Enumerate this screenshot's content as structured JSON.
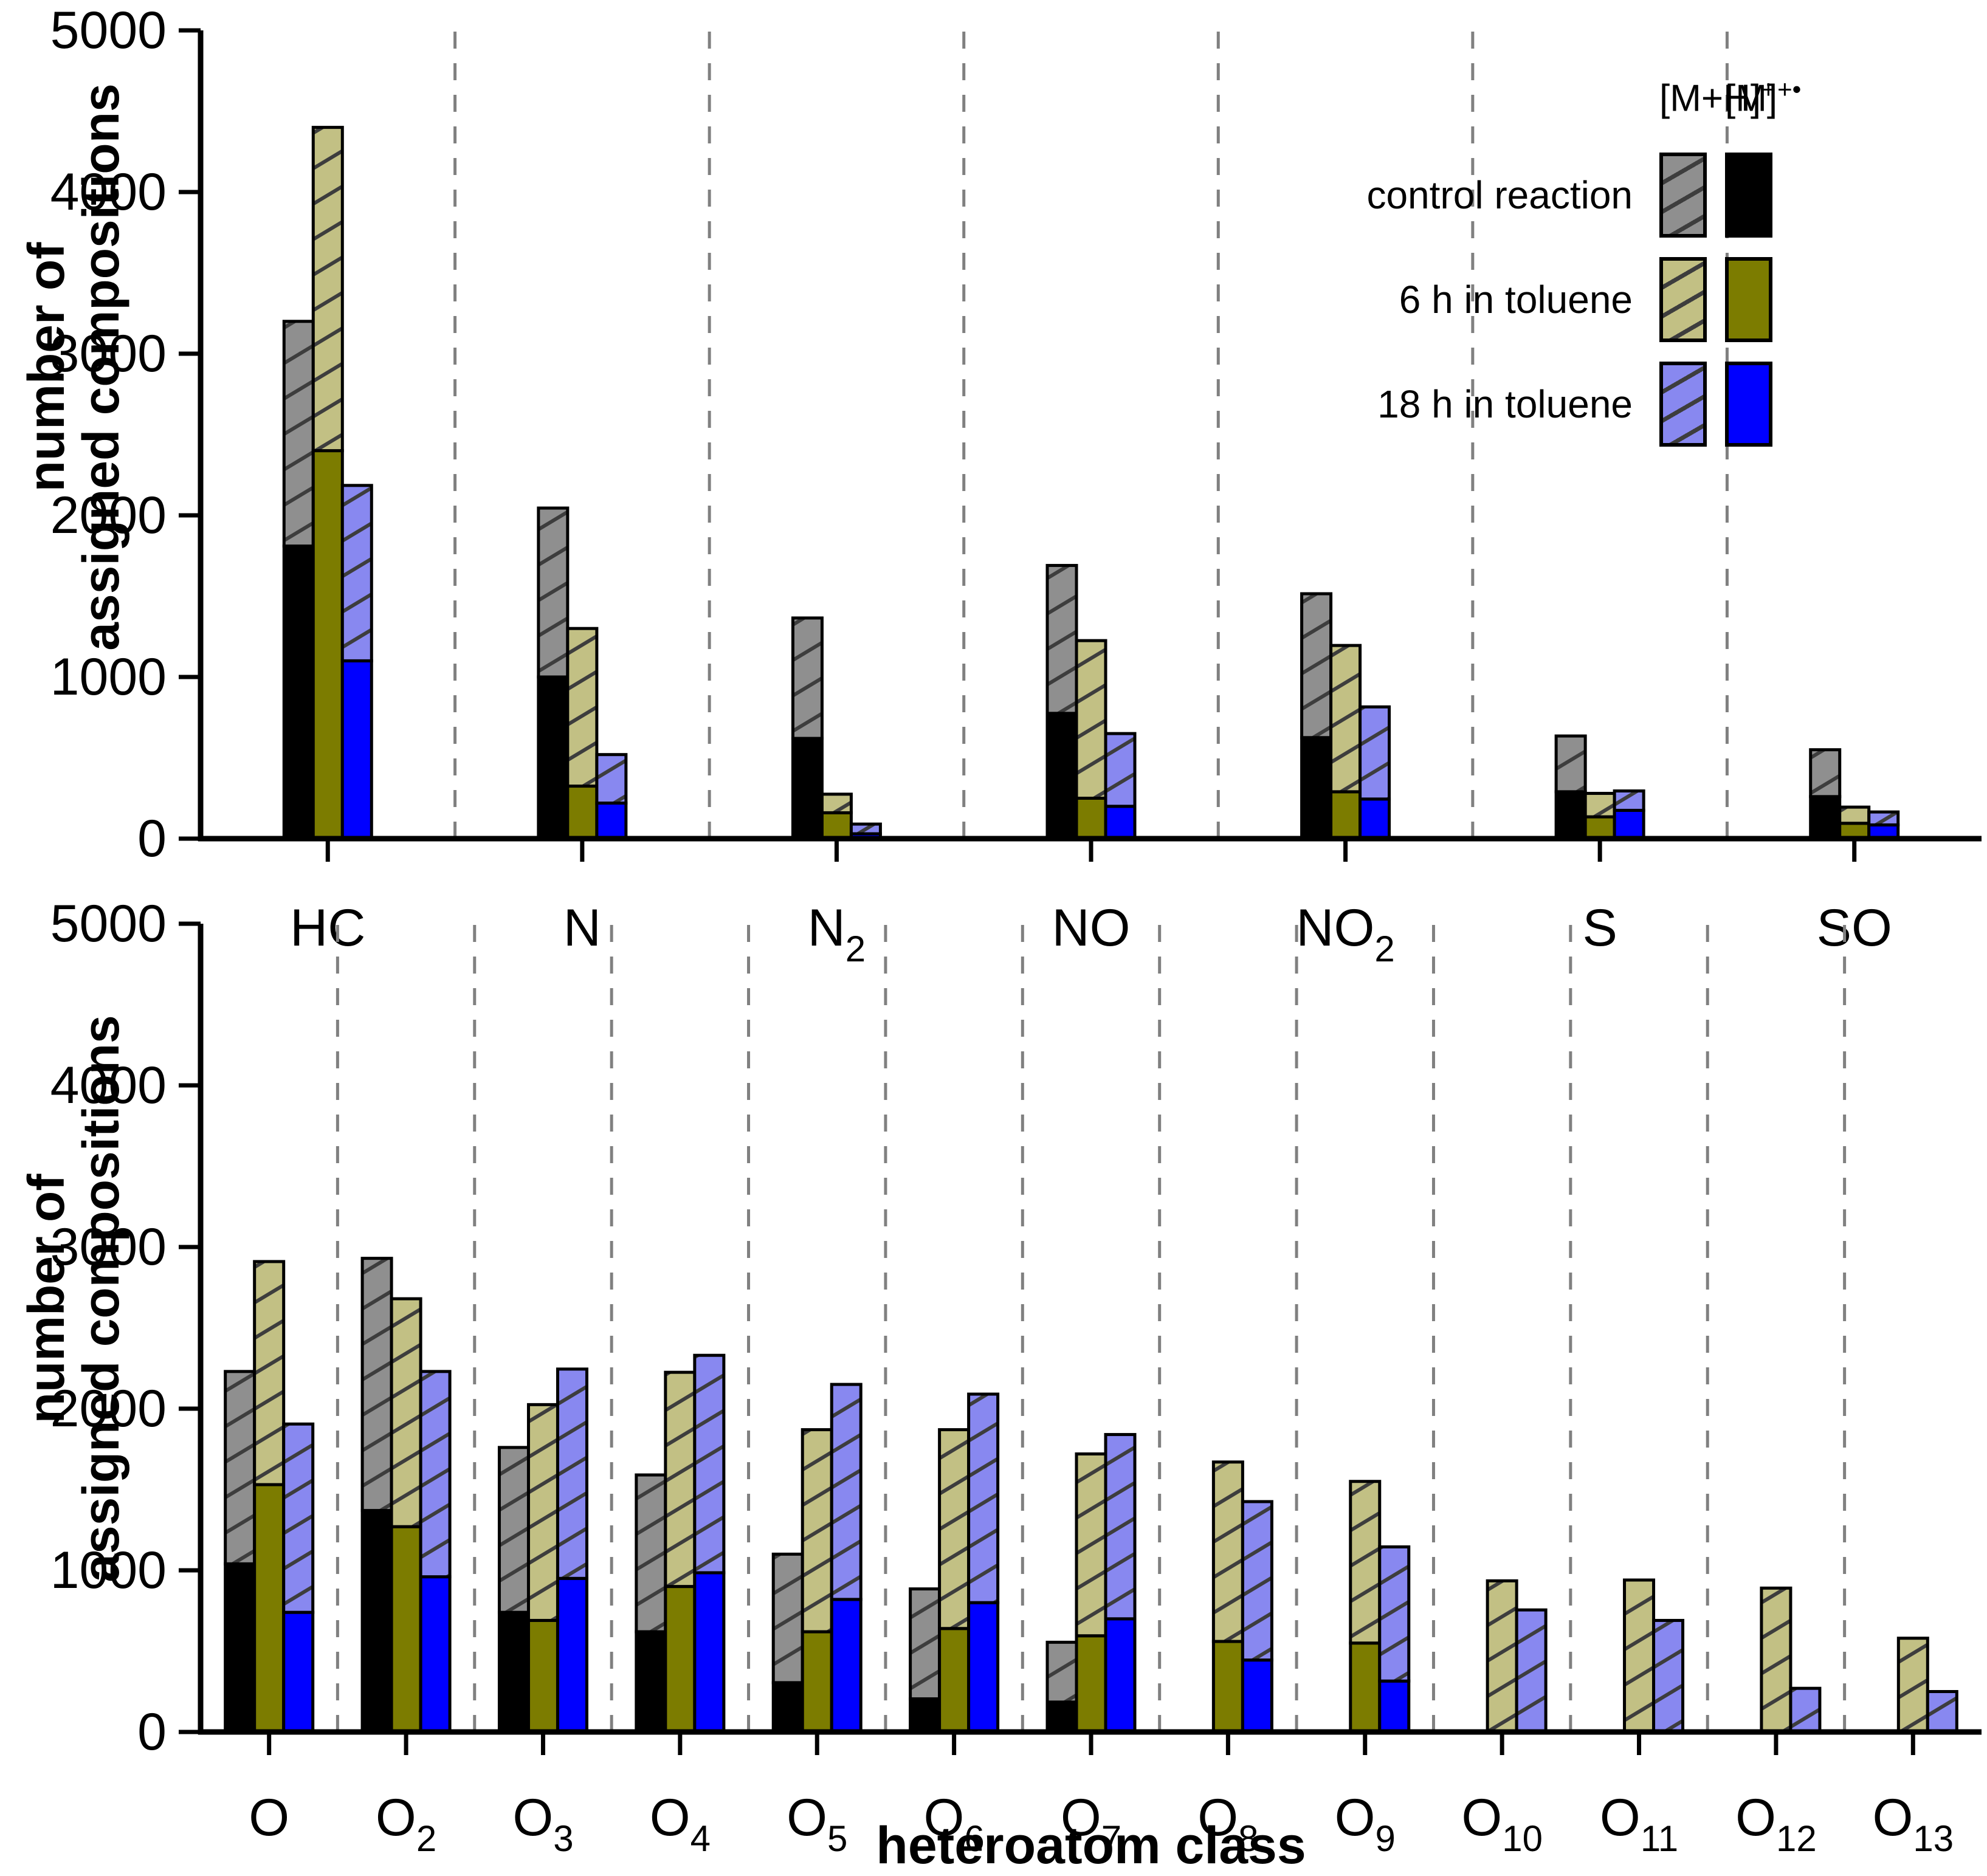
{
  "axis_titles": {
    "y_line1": "number of",
    "y_line2": "assigned compositions",
    "x_title": "heteroatom class"
  },
  "legend": {
    "col_hatched_base": "[M+H]",
    "col_hatched_sup": "+",
    "col_solid_base": "[M]",
    "col_solid_sup": "+•",
    "rows": [
      {
        "label": "control reaction"
      },
      {
        "label": "6 h in toluene"
      },
      {
        "label": "18 h in toluene"
      }
    ]
  },
  "colors": {
    "solid": [
      "#000000",
      "#7c7c00",
      "#0000ff"
    ],
    "hatch_fill": [
      "#8f8f8f",
      "#c2c084",
      "#8888f0"
    ],
    "hatch_line": "#3d3d3d",
    "bar_outline": "#000000",
    "axis": "#000000",
    "separator": "#808080"
  },
  "chart_data": [
    {
      "type": "bar",
      "panel": "top",
      "title": "",
      "xlabel": "",
      "ylabel": "number of assigned compositions",
      "ylim": [
        0,
        5000
      ],
      "yticks": [
        0,
        1000,
        2000,
        3000,
        4000,
        5000
      ],
      "grid": "vertical dashed separators between categories",
      "legend_position": "top-right",
      "conditions": [
        "control reaction",
        "6 h in toluene",
        "18 h in toluene"
      ],
      "stack_note": "per category, per condition: [solid [M]+. count, total count = [M]+. + hatched [M+H]+ top]",
      "categories": [
        {
          "main": "HC",
          "sub": ""
        },
        {
          "main": "N",
          "sub": ""
        },
        {
          "main": "N",
          "sub": "2"
        },
        {
          "main": "NO",
          "sub": ""
        },
        {
          "main": "NO",
          "sub": "2"
        },
        {
          "main": "S",
          "sub": ""
        },
        {
          "main": "SO",
          "sub": ""
        }
      ],
      "values": [
        [
          [
            1810,
            3200
          ],
          [
            2400,
            4400
          ],
          [
            1100,
            2185
          ]
        ],
        [
          [
            1000,
            2045
          ],
          [
            325,
            1300
          ],
          [
            220,
            520
          ]
        ],
        [
          [
            620,
            1365
          ],
          [
            160,
            275
          ],
          [
            30,
            90
          ]
        ],
        [
          [
            775,
            1690
          ],
          [
            250,
            1225
          ],
          [
            200,
            650
          ]
        ],
        [
          [
            625,
            1515
          ],
          [
            290,
            1195
          ],
          [
            245,
            815
          ]
        ],
        [
          [
            290,
            635
          ],
          [
            135,
            280
          ],
          [
            175,
            295
          ]
        ],
        [
          [
            260,
            550
          ],
          [
            95,
            195
          ],
          [
            85,
            165
          ]
        ]
      ]
    },
    {
      "type": "bar",
      "panel": "bottom",
      "title": "",
      "xlabel": "heteroatom class",
      "ylabel": "number of assigned compositions",
      "ylim": [
        0,
        5000
      ],
      "yticks": [
        0,
        1000,
        2000,
        3000,
        4000,
        5000
      ],
      "grid": "vertical dashed separators between categories",
      "conditions": [
        "control reaction",
        "6 h in toluene",
        "18 h in toluene"
      ],
      "stack_note": "per category, per condition: [solid [M]+. count, total count = [M]+. + hatched [M+H]+ top]; total 0 means bar absent",
      "categories": [
        {
          "main": "O",
          "sub": ""
        },
        {
          "main": "O",
          "sub": "2"
        },
        {
          "main": "O",
          "sub": "3"
        },
        {
          "main": "O",
          "sub": "4"
        },
        {
          "main": "O",
          "sub": "5"
        },
        {
          "main": "O",
          "sub": "6"
        },
        {
          "main": "O",
          "sub": "7"
        },
        {
          "main": "O",
          "sub": "8"
        },
        {
          "main": "O",
          "sub": "9"
        },
        {
          "main": "O",
          "sub": "10"
        },
        {
          "main": "O",
          "sub": "11"
        },
        {
          "main": "O",
          "sub": "12"
        },
        {
          "main": "O",
          "sub": "13"
        }
      ],
      "values": [
        [
          [
            1040,
            2230
          ],
          [
            1530,
            2910
          ],
          [
            740,
            1905
          ]
        ],
        [
          [
            1370,
            2930
          ],
          [
            1270,
            2680
          ],
          [
            960,
            2230
          ]
        ],
        [
          [
            740,
            1760
          ],
          [
            690,
            2025
          ],
          [
            950,
            2245
          ]
        ],
        [
          [
            620,
            1590
          ],
          [
            900,
            2225
          ],
          [
            985,
            2330
          ]
        ],
        [
          [
            305,
            1100
          ],
          [
            620,
            1870
          ],
          [
            820,
            2150
          ]
        ],
        [
          [
            205,
            885
          ],
          [
            640,
            1870
          ],
          [
            800,
            2090
          ]
        ],
        [
          [
            185,
            555
          ],
          [
            595,
            1720
          ],
          [
            700,
            1840
          ]
        ],
        [
          [
            0,
            0
          ],
          [
            560,
            1670
          ],
          [
            445,
            1425
          ]
        ],
        [
          [
            0,
            0
          ],
          [
            550,
            1550
          ],
          [
            315,
            1145
          ]
        ],
        [
          [
            0,
            0
          ],
          [
            0,
            935
          ],
          [
            0,
            755
          ]
        ],
        [
          [
            0,
            0
          ],
          [
            0,
            940
          ],
          [
            0,
            690
          ]
        ],
        [
          [
            0,
            0
          ],
          [
            0,
            890
          ],
          [
            0,
            270
          ]
        ],
        [
          [
            0,
            0
          ],
          [
            0,
            580
          ],
          [
            0,
            250
          ]
        ]
      ]
    }
  ]
}
